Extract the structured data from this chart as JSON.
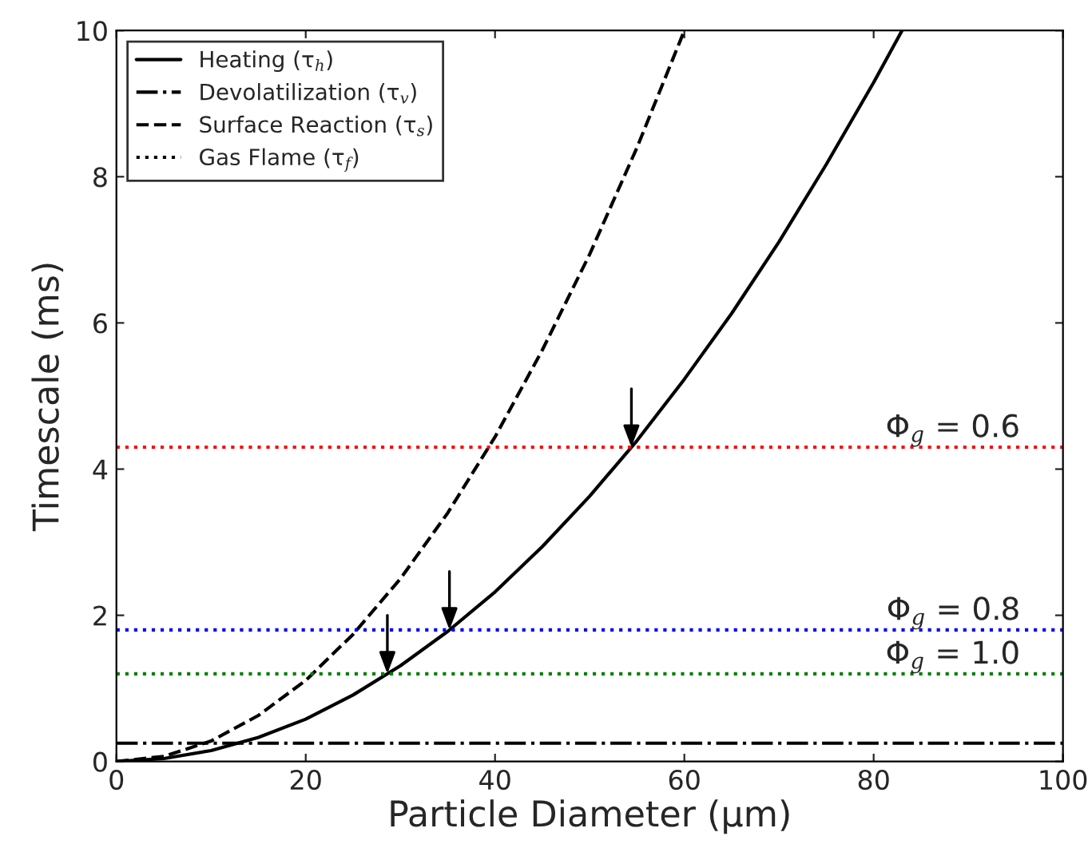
{
  "chart_data": {
    "type": "line",
    "xlabel": "Particle Diameter (μm)",
    "ylabel": "Timescale (ms)",
    "xlim": [
      0,
      100
    ],
    "ylim": [
      0,
      10
    ],
    "xticks": [
      0,
      20,
      40,
      60,
      80,
      100
    ],
    "yticks": [
      0,
      2,
      4,
      6,
      8,
      10
    ],
    "grid": false,
    "legend": "top left",
    "series": [
      {
        "name": "Heating (τ$_{h}$)",
        "color": "#000000",
        "line_style": "solid",
        "x": [
          0,
          5,
          10,
          15,
          20,
          25,
          30,
          35,
          40,
          45,
          50,
          55,
          60,
          65,
          70,
          75,
          80,
          83
        ],
        "values": [
          0,
          0.04,
          0.15,
          0.33,
          0.58,
          0.91,
          1.31,
          1.78,
          2.32,
          2.94,
          3.63,
          4.39,
          5.23,
          6.13,
          7.11,
          8.17,
          9.29,
          10
        ]
      },
      {
        "name": "Devolatilization (τ$_{v}$)",
        "color": "#000000",
        "line_style": "dashdot",
        "x": [
          0,
          100
        ],
        "values": [
          0.25,
          0.25
        ]
      },
      {
        "name": "Surface Reaction (τ$_{s}$)",
        "color": "#000000",
        "line_style": "dashed",
        "x": [
          0,
          5,
          10,
          15,
          20,
          25,
          30,
          35,
          40,
          45,
          50,
          55,
          60
        ],
        "values": [
          0,
          0.07,
          0.28,
          0.63,
          1.11,
          1.74,
          2.5,
          3.4,
          4.44,
          5.63,
          6.94,
          8.4,
          10
        ]
      },
      {
        "name": "Gas Flame (τ$_{f}$)",
        "color": "#000000",
        "line_style": "dotted"
      }
    ],
    "ref_lines": [
      {
        "axis": "y",
        "value": 4.3,
        "color": "#ff0000",
        "line_style": "dotted"
      },
      {
        "axis": "y",
        "value": 1.8,
        "color": "#0000ff",
        "line_style": "dotted"
      },
      {
        "axis": "y",
        "value": 1.2,
        "color": "#008000",
        "line_style": "dotted"
      }
    ],
    "annotations": [
      {
        "text": "Φ$_{g}$ = 0.6",
        "y": 4.3
      },
      {
        "text": "Φ$_{g}$ = 0.8",
        "y": 1.8
      },
      {
        "text": "Φ$_{g}$ = 1.0",
        "y": 1.2
      }
    ]
  }
}
